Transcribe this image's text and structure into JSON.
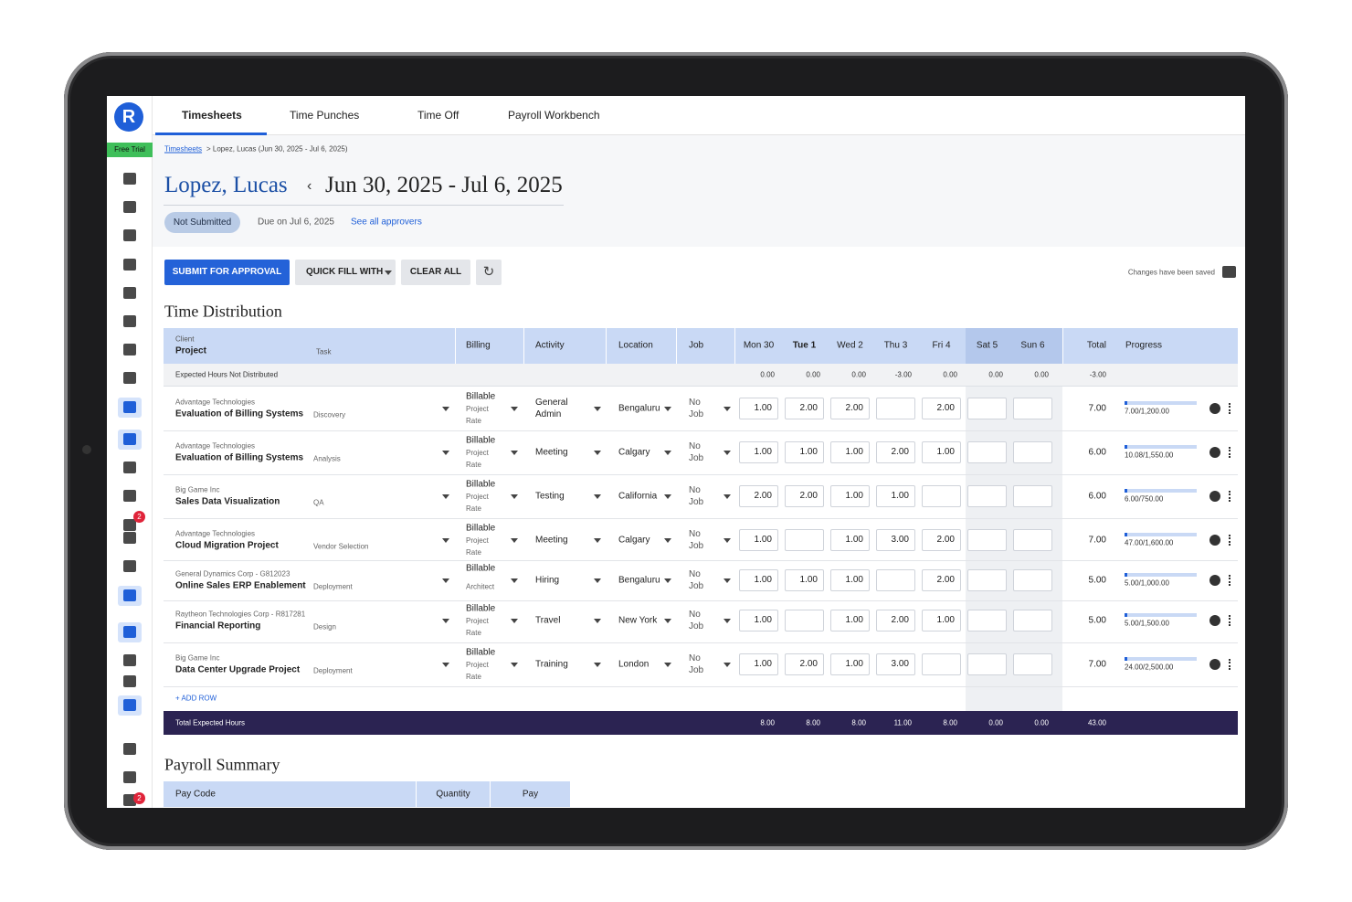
{
  "app": {
    "logo": "R",
    "trial": "Free Trial",
    "badges": [
      "2",
      "2"
    ]
  },
  "tabs": [
    "Timesheets",
    "Time Punches",
    "Time Off",
    "Payroll Workbench"
  ],
  "breadcrumb": {
    "link": "Timesheets",
    "path": "> Lopez, Lucas (Jun 30, 2025 - Jul 6, 2025)"
  },
  "header": {
    "employee": "Lopez, Lucas",
    "period": "Jun 30, 2025 - Jul 6, 2025",
    "status": "Not Submitted",
    "due": "Due on Jul 6, 2025",
    "approvers": "See all approvers"
  },
  "toolbar": {
    "submit": "SUBMIT FOR APPROVAL",
    "quick_fill": "QUICK FILL WITH",
    "clear": "CLEAR ALL",
    "saved": "Changes have been saved"
  },
  "time_distribution": {
    "title": "Time Distribution",
    "columns": {
      "client": "Client",
      "project": "Project",
      "task": "Task",
      "billing": "Billing",
      "activity": "Activity",
      "location": "Location",
      "job": "Job",
      "days": [
        "Mon 30",
        "Tue 1",
        "Wed 2",
        "Thu 3",
        "Fri 4",
        "Sat 5",
        "Sun 6"
      ],
      "total": "Total",
      "progress": "Progress"
    },
    "expected": {
      "label": "Expected Hours Not Distributed",
      "days": [
        "0.00",
        "0.00",
        "0.00",
        "-3.00",
        "0.00",
        "0.00",
        "0.00"
      ],
      "total": "-3.00"
    },
    "rows": [
      {
        "client": "Advantage Technologies",
        "project": "Evaluation of Billing Systems",
        "task": "Discovery",
        "billing": "Billable",
        "billing_detail": "Project Rate",
        "activity": "General Admin",
        "location": "Bengaluru",
        "job": "No Job",
        "hours": [
          "1.00",
          "2.00",
          "2.00",
          null,
          "2.00",
          null,
          null
        ],
        "total": "7.00",
        "progress": "7.00/1,200.00"
      },
      {
        "client": "Advantage Technologies",
        "project": "Evaluation of Billing Systems",
        "task": "Analysis",
        "billing": "Billable",
        "billing_detail": "Project Rate",
        "activity": "Meeting",
        "location": "Calgary",
        "job": "No Job",
        "hours": [
          "1.00",
          "1.00",
          "1.00",
          "2.00",
          "1.00",
          null,
          null
        ],
        "total": "6.00",
        "progress": "10.08/1,550.00"
      },
      {
        "client": "Big Game Inc",
        "project": "Sales Data Visualization",
        "task": "QA",
        "billing": "Billable",
        "billing_detail": "Project Rate",
        "activity": "Testing",
        "location": "California",
        "job": "No Job",
        "hours": [
          "2.00",
          "2.00",
          "1.00",
          "1.00",
          null,
          null,
          null
        ],
        "total": "6.00",
        "progress": "6.00/750.00"
      },
      {
        "client": "Advantage Technologies",
        "project": "Cloud Migration Project",
        "task": "Vendor Selection",
        "billing": "Billable",
        "billing_detail": "Project Rate",
        "activity": "Meeting",
        "location": "Calgary",
        "job": "No Job",
        "hours": [
          "1.00",
          null,
          "1.00",
          "3.00",
          "2.00",
          null,
          null
        ],
        "total": "7.00",
        "progress": "47.00/1,600.00"
      },
      {
        "client": "General Dynamics Corp - G812023",
        "project": "Online Sales ERP Enablement",
        "task": "Deployment",
        "billing": "Billable",
        "billing_detail": "Architect",
        "activity": "Hiring",
        "location": "Bengaluru",
        "job": "No Job",
        "hours": [
          "1.00",
          "1.00",
          "1.00",
          null,
          "2.00",
          null,
          null
        ],
        "total": "5.00",
        "progress": "5.00/1,000.00"
      },
      {
        "client": "Raytheon Technologies Corp - R817281",
        "project": "Financial Reporting",
        "task": "Design",
        "billing": "Billable",
        "billing_detail": "Project Rate",
        "activity": "Travel",
        "location": "New York",
        "job": "No Job",
        "hours": [
          "1.00",
          null,
          "1.00",
          "2.00",
          "1.00",
          null,
          null
        ],
        "total": "5.00",
        "progress": "5.00/1,500.00"
      },
      {
        "client": "Big Game Inc",
        "project": "Data Center Upgrade Project",
        "task": "Deployment",
        "billing": "Billable",
        "billing_detail": "Project Rate",
        "activity": "Training",
        "location": "London",
        "job": "No Job",
        "hours": [
          "1.00",
          "2.00",
          "1.00",
          "3.00",
          null,
          null,
          null
        ],
        "total": "7.00",
        "progress": "24.00/2,500.00"
      }
    ],
    "add_row": "+ ADD ROW",
    "totals": {
      "label": "Total Expected Hours",
      "days": [
        "8.00",
        "8.00",
        "8.00",
        "11.00",
        "8.00",
        "0.00",
        "0.00"
      ],
      "total": "43.00"
    }
  },
  "payroll": {
    "title": "Payroll Summary",
    "columns": [
      "Pay Code",
      "Quantity",
      "Pay"
    ]
  }
}
